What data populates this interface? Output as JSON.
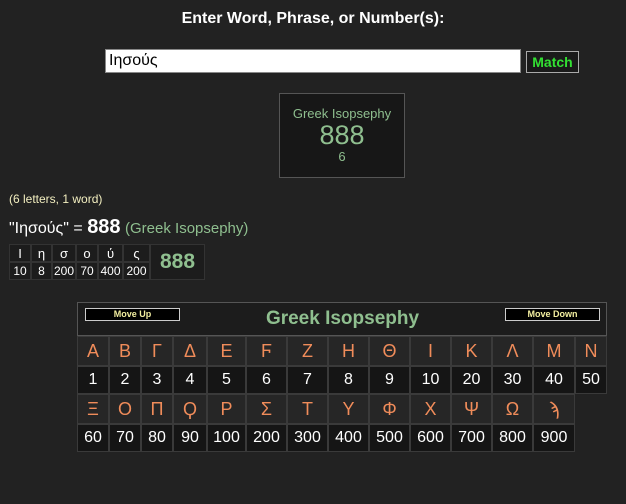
{
  "header": {
    "prompt": "Enter Word, Phrase, or Number(s):"
  },
  "input": {
    "value": "Ιησούς",
    "button": "Match"
  },
  "result_box": {
    "cipher": "Greek Isopsephy",
    "value": 888,
    "count": 6
  },
  "summary": {
    "stats": "(6 letters, 1 word)",
    "phrase": "\"Ιησούς\"",
    "equals": "=",
    "value": 888,
    "cipher": "(Greek Isopsephy)"
  },
  "breakdown": {
    "letters": [
      "Ι",
      "η",
      "σ",
      "ο",
      "ύ",
      "ς"
    ],
    "values": [
      10,
      8,
      200,
      70,
      400,
      200
    ],
    "total": 888
  },
  "cipher_table": {
    "move_up": "Move Up",
    "title": "Greek Isopsephy",
    "move_down": "Move Down",
    "rows": [
      {
        "letters": [
          "Α",
          "Β",
          "Γ",
          "Δ",
          "Ε",
          "Ϝ",
          "Ζ",
          "Η",
          "Θ",
          "Ι",
          "Κ",
          "Λ",
          "Μ",
          "Ν"
        ],
        "values": [
          1,
          2,
          3,
          4,
          5,
          6,
          7,
          8,
          9,
          10,
          20,
          30,
          40,
          50
        ]
      },
      {
        "letters": [
          "Ξ",
          "Ο",
          "Π",
          "Ϙ",
          "Ρ",
          "Σ",
          "Τ",
          "Υ",
          "Φ",
          "Χ",
          "Ψ",
          "Ω",
          "ϡ"
        ],
        "values": [
          60,
          70,
          80,
          90,
          100,
          200,
          300,
          400,
          500,
          600,
          700,
          800,
          900
        ]
      }
    ]
  }
}
